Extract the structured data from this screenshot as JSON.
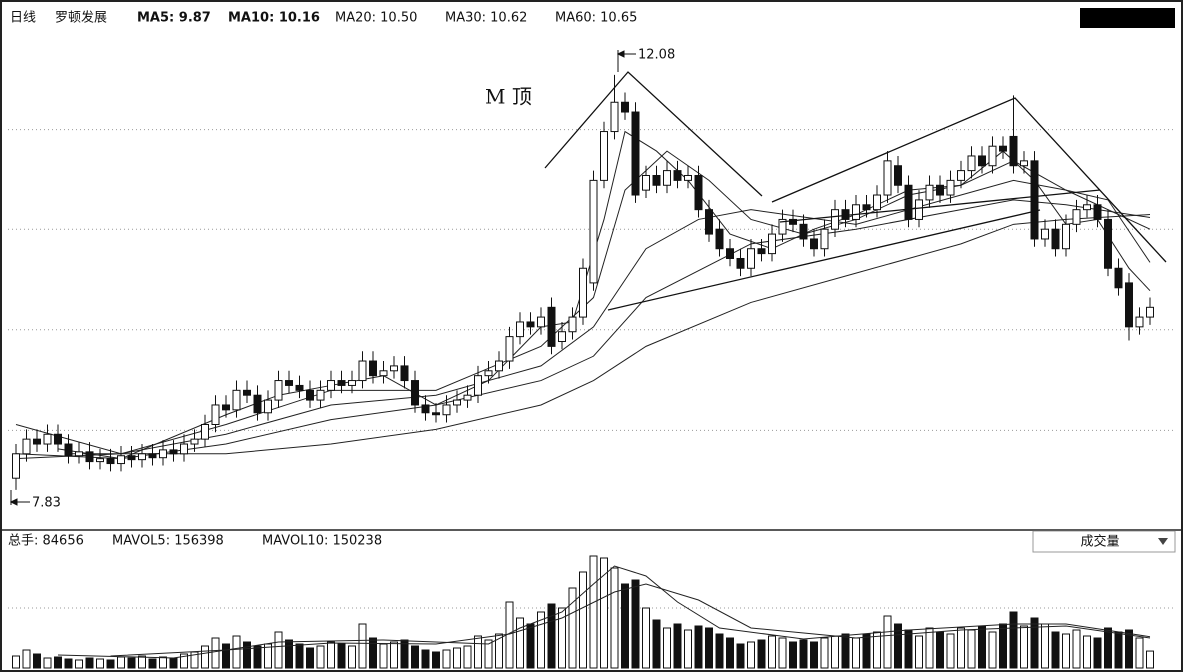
{
  "chart_data": [
    {
      "type": "candlestick",
      "title": "日线",
      "subtitle": "罗顿发展",
      "indicators": [
        "MA5: 9.87",
        "MA10: 10.16",
        "MA20: 10.50",
        "MA30: 10.62",
        "MA60: 10.65"
      ],
      "annotation": "M 顶",
      "peak": 12.08,
      "trough": 7.83,
      "up_color": "#ffffff",
      "down_color": "#111111",
      "ylim": [
        7.44,
        12.54
      ],
      "ygrid": [
        8.44,
        9.47,
        10.5,
        11.52
      ],
      "grid": true,
      "open": [
        7.95,
        8.2,
        8.35,
        8.3,
        8.4,
        8.3,
        8.18,
        8.22,
        8.12,
        8.15,
        8.1,
        8.18,
        8.14,
        8.2,
        8.16,
        8.24,
        8.2,
        8.3,
        8.35,
        8.5,
        8.7,
        8.65,
        8.85,
        8.8,
        8.62,
        8.75,
        8.95,
        8.9,
        8.85,
        8.75,
        8.85,
        8.95,
        8.9,
        8.95,
        9.15,
        9.0,
        9.05,
        9.1,
        8.95,
        8.7,
        8.62,
        8.6,
        8.7,
        8.75,
        8.8,
        9.0,
        9.05,
        9.15,
        9.4,
        9.55,
        9.5,
        9.7,
        9.35,
        9.45,
        9.6,
        9.95,
        11.0,
        11.5,
        11.8,
        11.7,
        10.9,
        11.05,
        10.95,
        11.1,
        11.0,
        11.05,
        10.7,
        10.5,
        10.3,
        10.2,
        10.1,
        10.3,
        10.25,
        10.45,
        10.6,
        10.55,
        10.4,
        10.3,
        10.5,
        10.7,
        10.6,
        10.75,
        10.7,
        10.85,
        11.15,
        10.95,
        10.6,
        10.8,
        10.95,
        10.85,
        11.0,
        11.1,
        11.25,
        11.15,
        11.35,
        11.45,
        11.15,
        11.2,
        10.4,
        10.5,
        10.3,
        10.55,
        10.7,
        10.75,
        10.6,
        10.1,
        9.95,
        9.5,
        9.6
      ],
      "high": [
        8.3,
        8.45,
        8.45,
        8.5,
        8.5,
        8.4,
        8.32,
        8.32,
        8.25,
        8.25,
        8.28,
        8.28,
        8.3,
        8.3,
        8.34,
        8.34,
        8.4,
        8.45,
        8.6,
        8.8,
        8.8,
        8.95,
        8.95,
        8.9,
        8.85,
        9.05,
        9.05,
        9.0,
        8.95,
        8.95,
        9.05,
        9.05,
        9.05,
        9.25,
        9.25,
        9.15,
        9.2,
        9.2,
        9.05,
        8.8,
        8.72,
        8.8,
        8.85,
        8.9,
        9.1,
        9.15,
        9.25,
        9.5,
        9.65,
        9.65,
        9.7,
        9.8,
        9.55,
        9.7,
        10.2,
        11.1,
        11.6,
        12.08,
        11.9,
        11.8,
        11.15,
        11.15,
        11.2,
        11.2,
        11.15,
        11.15,
        10.8,
        10.6,
        10.4,
        10.3,
        10.4,
        10.4,
        10.55,
        10.7,
        10.7,
        10.65,
        10.5,
        10.6,
        10.8,
        10.8,
        10.85,
        10.85,
        10.95,
        11.3,
        11.25,
        11.05,
        10.9,
        11.05,
        11.05,
        11.1,
        11.2,
        11.35,
        11.35,
        11.45,
        11.45,
        11.87,
        11.3,
        11.3,
        10.6,
        10.6,
        10.65,
        10.8,
        10.85,
        10.85,
        10.7,
        10.2,
        10.05,
        9.7,
        9.8
      ],
      "low": [
        7.83,
        8.12,
        8.22,
        8.22,
        8.22,
        8.1,
        8.1,
        8.04,
        8.04,
        8.02,
        8.02,
        8.06,
        8.06,
        8.08,
        8.08,
        8.12,
        8.12,
        8.22,
        8.27,
        8.42,
        8.57,
        8.57,
        8.72,
        8.54,
        8.54,
        8.67,
        8.82,
        8.77,
        8.67,
        8.67,
        8.77,
        8.82,
        8.82,
        8.87,
        8.92,
        8.92,
        8.97,
        8.87,
        8.62,
        8.54,
        8.52,
        8.52,
        8.62,
        8.67,
        8.72,
        8.92,
        8.97,
        9.07,
        9.32,
        9.42,
        9.42,
        9.22,
        9.27,
        9.37,
        9.52,
        9.87,
        10.92,
        11.42,
        11.62,
        10.77,
        10.82,
        10.87,
        10.87,
        10.92,
        10.92,
        10.62,
        10.37,
        10.22,
        10.12,
        10.02,
        10.02,
        10.17,
        10.17,
        10.37,
        10.47,
        10.32,
        10.22,
        10.22,
        10.42,
        10.52,
        10.52,
        10.62,
        10.62,
        10.77,
        10.87,
        10.52,
        10.52,
        10.72,
        10.77,
        10.77,
        10.92,
        11.02,
        11.07,
        11.07,
        11.22,
        11.07,
        11.07,
        10.32,
        10.32,
        10.22,
        10.22,
        10.47,
        10.62,
        10.52,
        10.02,
        9.82,
        9.36,
        9.42,
        9.52
      ],
      "close": [
        8.2,
        8.35,
        8.3,
        8.4,
        8.3,
        8.18,
        8.22,
        8.12,
        8.15,
        8.1,
        8.18,
        8.14,
        8.2,
        8.16,
        8.24,
        8.2,
        8.3,
        8.35,
        8.5,
        8.7,
        8.65,
        8.85,
        8.8,
        8.62,
        8.75,
        8.95,
        8.9,
        8.85,
        8.75,
        8.85,
        8.95,
        8.9,
        8.95,
        9.15,
        9.0,
        9.05,
        9.1,
        8.95,
        8.7,
        8.62,
        8.6,
        8.7,
        8.75,
        8.8,
        9.0,
        9.05,
        9.15,
        9.4,
        9.55,
        9.5,
        9.6,
        9.3,
        9.45,
        9.6,
        10.1,
        11.0,
        11.5,
        11.8,
        11.7,
        10.85,
        11.05,
        10.95,
        11.1,
        11.0,
        11.05,
        10.7,
        10.45,
        10.3,
        10.2,
        10.1,
        10.3,
        10.25,
        10.45,
        10.6,
        10.55,
        10.4,
        10.3,
        10.5,
        10.7,
        10.6,
        10.75,
        10.7,
        10.85,
        11.2,
        10.95,
        10.6,
        10.8,
        10.95,
        10.85,
        11.0,
        11.1,
        11.25,
        11.15,
        11.35,
        11.3,
        11.15,
        11.2,
        10.4,
        10.5,
        10.3,
        10.55,
        10.7,
        10.75,
        10.6,
        10.1,
        9.9,
        9.5,
        9.6,
        9.7
      ],
      "ma_lines": [
        {
          "x": [
            4,
            10,
            20,
            25,
            30,
            35,
            40,
            45,
            50,
            53,
            56,
            58,
            61,
            64,
            68,
            72,
            76,
            80,
            85,
            90,
            94,
            97,
            100,
            103,
            106,
            108
          ],
          "values": [
            8.25,
            8.15,
            8.6,
            8.8,
            8.9,
            9.0,
            8.7,
            8.95,
            9.5,
            9.55,
            10.6,
            11.5,
            11.3,
            11.0,
            10.45,
            10.3,
            10.5,
            10.65,
            10.9,
            10.95,
            11.3,
            11.0,
            10.55,
            10.6,
            10.1,
            9.87
          ]
        },
        {
          "x": [
            5,
            10,
            20,
            30,
            40,
            50,
            55,
            58,
            62,
            66,
            70,
            75,
            80,
            85,
            90,
            95,
            100,
            104,
            108
          ],
          "values": [
            8.2,
            8.2,
            8.5,
            8.85,
            8.85,
            9.3,
            9.8,
            10.9,
            11.3,
            11.0,
            10.6,
            10.45,
            10.6,
            10.85,
            10.95,
            11.2,
            10.9,
            10.8,
            10.16
          ]
        },
        {
          "x": [
            0,
            10,
            20,
            30,
            40,
            50,
            55,
            60,
            65,
            70,
            80,
            90,
            95,
            100,
            108
          ],
          "values": [
            8.15,
            8.2,
            8.4,
            8.7,
            8.8,
            9.1,
            9.5,
            10.3,
            10.6,
            10.7,
            10.55,
            10.85,
            11.0,
            10.9,
            10.5
          ]
        },
        {
          "x": [
            0,
            10,
            20,
            30,
            40,
            50,
            55,
            60,
            70,
            80,
            90,
            95,
            100,
            108
          ],
          "values": [
            8.2,
            8.15,
            8.3,
            8.55,
            8.7,
            8.95,
            9.2,
            9.8,
            10.35,
            10.5,
            10.7,
            10.8,
            10.75,
            10.62
          ]
        },
        {
          "x": [
            0,
            10,
            20,
            30,
            40,
            50,
            55,
            60,
            70,
            80,
            90,
            95,
            100,
            108
          ],
          "values": [
            8.5,
            8.2,
            8.2,
            8.3,
            8.45,
            8.7,
            8.95,
            9.3,
            9.75,
            10.05,
            10.35,
            10.55,
            10.6,
            10.65
          ]
        }
      ]
    },
    {
      "type": "bar",
      "indicators": [
        "总手: 84656",
        "MAVOL5: 156398",
        "MAVOL10: 150238"
      ],
      "selector": "成交量",
      "ylim": [
        0,
        600000
      ],
      "ygrid": [
        300000
      ],
      "grid": true,
      "values": [
        60000,
        90000,
        70000,
        50000,
        55000,
        45000,
        40000,
        50000,
        45000,
        40000,
        55000,
        50000,
        60000,
        45000,
        55000,
        50000,
        70000,
        80000,
        110000,
        150000,
        120000,
        160000,
        130000,
        110000,
        120000,
        180000,
        140000,
        120000,
        100000,
        110000,
        130000,
        120000,
        110000,
        220000,
        150000,
        120000,
        130000,
        140000,
        110000,
        90000,
        80000,
        90000,
        100000,
        110000,
        160000,
        140000,
        170000,
        330000,
        250000,
        220000,
        280000,
        320000,
        300000,
        400000,
        480000,
        560000,
        550000,
        500000,
        420000,
        440000,
        300000,
        240000,
        200000,
        220000,
        190000,
        210000,
        200000,
        170000,
        150000,
        120000,
        130000,
        140000,
        160000,
        150000,
        130000,
        140000,
        130000,
        150000,
        160000,
        170000,
        150000,
        170000,
        180000,
        260000,
        220000,
        190000,
        160000,
        200000,
        180000,
        170000,
        200000,
        190000,
        210000,
        180000,
        220000,
        280000,
        210000,
        250000,
        220000,
        180000,
        170000,
        190000,
        160000,
        150000,
        200000,
        180000,
        190000,
        150000,
        84656
      ],
      "ma_lines": [
        {
          "x": [
            4,
            15,
            25,
            35,
            45,
            48,
            52,
            55,
            57,
            60,
            63,
            67,
            75,
            85,
            95,
            100,
            108
          ],
          "values": [
            65000,
            50000,
            130000,
            140000,
            120000,
            200000,
            280000,
            420000,
            510000,
            460000,
            330000,
            200000,
            145000,
            190000,
            220000,
            220000,
            156398
          ]
        },
        {
          "x": [
            9,
            20,
            30,
            40,
            47,
            52,
            57,
            60,
            65,
            70,
            80,
            90,
            100,
            108
          ],
          "values": [
            60000,
            90000,
            125000,
            120000,
            170000,
            250000,
            380000,
            420000,
            340000,
            200000,
            150000,
            190000,
            210000,
            150238
          ]
        }
      ]
    }
  ]
}
